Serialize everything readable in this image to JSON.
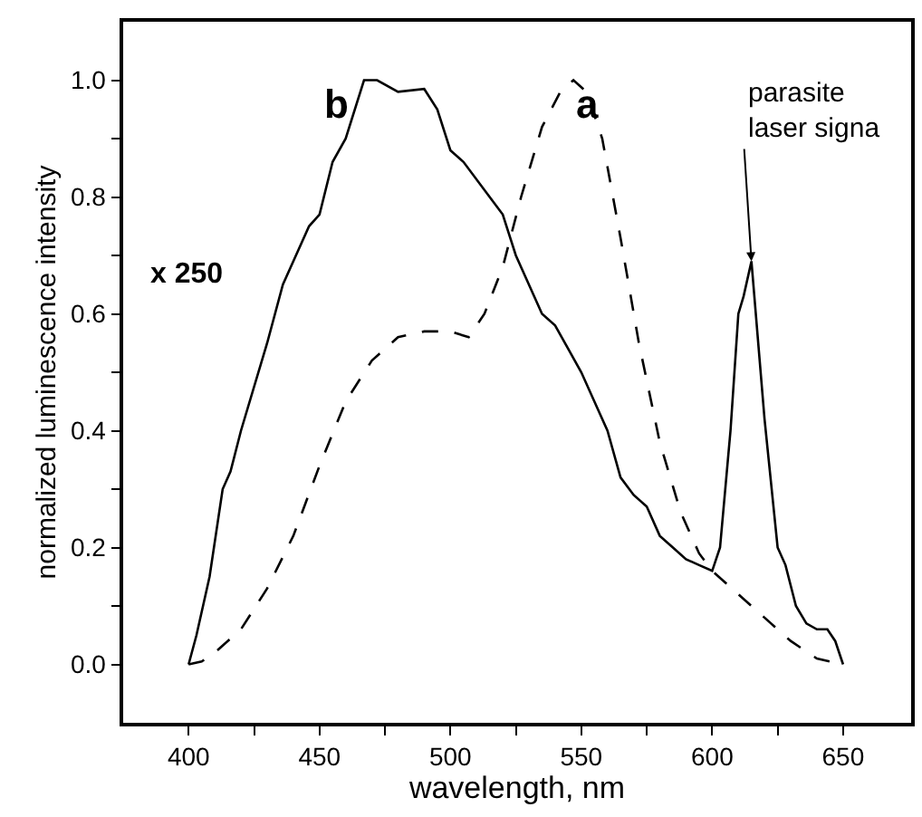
{
  "chart_data": {
    "type": "line",
    "xlabel": "wavelength, nm",
    "ylabel": "normalized luminescence intensity",
    "xlim": [
      375,
      676
    ],
    "ylim": [
      -0.1,
      1.1
    ],
    "xticks": [
      400,
      {
        "value": 425,
        "label": null
      },
      450,
      {
        "value": 475,
        "label": null
      },
      500,
      {
        "value": 525,
        "label": null
      },
      550,
      {
        "value": 575,
        "label": null
      },
      600,
      {
        "value": 625,
        "label": null
      },
      650
    ],
    "yticks": [
      "0.0",
      {
        "value": 0.1,
        "label": null
      },
      0.2,
      {
        "value": 0.3,
        "label": null
      },
      0.4,
      {
        "value": 0.5,
        "label": null
      },
      0.6,
      {
        "value": 0.7,
        "label": null
      },
      0.8,
      {
        "value": 0.9,
        "label": null
      },
      "1.0"
    ],
    "marker": "none",
    "series": [
      {
        "color": "#000000",
        "line_style": "solid",
        "x": [
          400,
          403,
          408,
          413,
          416,
          420,
          430,
          436,
          441,
          446,
          450,
          455,
          460,
          467,
          472,
          480,
          490,
          495,
          500,
          505,
          515,
          520,
          525,
          530,
          535,
          540,
          545,
          550,
          555,
          560,
          565,
          570,
          575,
          580,
          585,
          590,
          595,
          600,
          603,
          607,
          610,
          612,
          615,
          620,
          625,
          628,
          632,
          636,
          640,
          644,
          647,
          650
        ],
        "values": [
          0,
          0.05,
          0.15,
          0.3,
          0.33,
          0.4,
          0.55,
          0.65,
          0.7,
          0.75,
          0.77,
          0.86,
          0.9,
          1.0,
          1.0,
          0.98,
          0.985,
          0.95,
          0.88,
          0.86,
          0.8,
          0.77,
          0.7,
          0.65,
          0.6,
          0.58,
          0.54,
          0.5,
          0.45,
          0.4,
          0.32,
          0.29,
          0.27,
          0.22,
          0.2,
          0.18,
          0.17,
          0.16,
          0.2,
          0.4,
          0.6,
          0.63,
          0.69,
          0.42,
          0.2,
          0.17,
          0.1,
          0.07,
          0.06,
          0.06,
          0.04,
          0
        ]
      },
      {
        "color": "#000000",
        "line_style": "dashed",
        "x": [
          400,
          405,
          410,
          420,
          430,
          440,
          450,
          460,
          470,
          480,
          490,
          500,
          507,
          513,
          520,
          527,
          535,
          542,
          547,
          552,
          558,
          565,
          572,
          580,
          588,
          595,
          600,
          610,
          620,
          630,
          640,
          650
        ],
        "values": [
          0,
          0.005,
          0.02,
          0.06,
          0.13,
          0.22,
          0.34,
          0.45,
          0.52,
          0.56,
          0.57,
          0.57,
          0.56,
          0.6,
          0.68,
          0.8,
          0.92,
          0.98,
          1.0,
          0.98,
          0.9,
          0.73,
          0.55,
          0.38,
          0.26,
          0.19,
          0.16,
          0.12,
          0.08,
          0.04,
          0.01,
          0
        ]
      }
    ],
    "annotations": [
      "b",
      "a",
      "x 250",
      {
        "text": "parasite\nlaser signa",
        "x": 615,
        "y": 0.69
      }
    ]
  }
}
